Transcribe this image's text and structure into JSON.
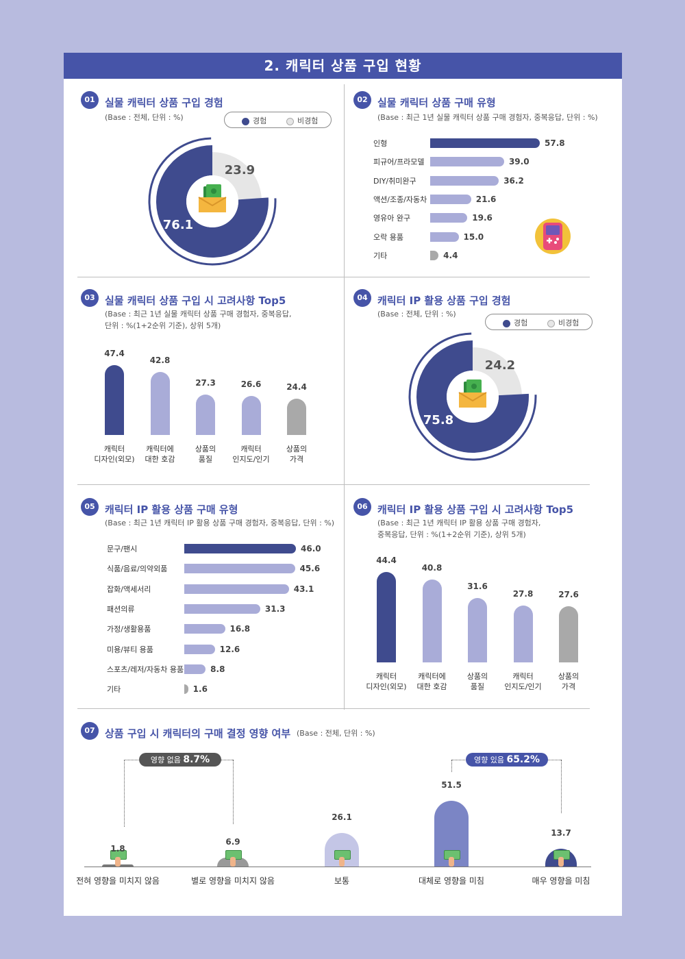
{
  "header": {
    "title": "2. 캐릭터 상품 구입 현황"
  },
  "colors": {
    "primary": "#4654a8",
    "dark_bar": "#3f4b8e",
    "light_bar": "#a9acd8",
    "gray_bar": "#a9a9a9",
    "donut_gray": "#e6e6e6"
  },
  "legend": {
    "experienced": "경험",
    "not_experienced": "비경험"
  },
  "sections": [
    {
      "num": "01",
      "title": "실물 캐릭터 상품 구입 경험",
      "base": "(Base : 전체, 단위 : %)"
    },
    {
      "num": "02",
      "title": "실물 캐릭터 상품 구매 유형",
      "base": "(Base : 최근 1년 실물 캐릭터 상품 구매 경험자, 중복응답, 단위 : %)"
    },
    {
      "num": "03",
      "title": "실물 캐릭터 상품 구입 시 고려사항 Top5",
      "base1": "(Base : 최근 1년 실물 캐릭터 상품 구매 경험자, 중복응답,",
      "base2": "단위 : %(1+2순위 기준), 상위 5개)"
    },
    {
      "num": "04",
      "title": "캐릭터 IP 활용 상품 구입 경험",
      "base": "(Base : 전체, 단위 : %)"
    },
    {
      "num": "05",
      "title": "캐릭터 IP 활용 상품 구매 유형",
      "base": "(Base : 최근 1년 캐릭터 IP 활용 상품 구매 경험자, 중복응답, 단위 : %)"
    },
    {
      "num": "06",
      "title": "캐릭터 IP 활용 상품 구입 시 고려사항 Top5",
      "base1": "(Base : 최근 1년 캐릭터 IP 활용 상품 구매 경험자,",
      "base2": "중복응답, 단위 : %(1+2순위 기준), 상위 5개)"
    },
    {
      "num": "07",
      "title": "상품 구입 시 캐릭터의 구매 결정 영향 여부",
      "base": "(Base : 전체, 단위 : %)"
    }
  ],
  "chart_data": [
    {
      "id": "01",
      "type": "pie",
      "labels": [
        "경험",
        "비경험"
      ],
      "values": [
        76.1,
        23.9
      ]
    },
    {
      "id": "02",
      "type": "bar",
      "orientation": "horizontal",
      "categories": [
        "인형",
        "피규어/프라모델",
        "DIY/취미완구",
        "액션/조종/자동차",
        "영유아 완구",
        "오락 용품",
        "기타"
      ],
      "values": [
        57.8,
        39.0,
        36.2,
        21.6,
        19.6,
        15.0,
        4.4
      ],
      "value_labels": [
        "57.8",
        "39.0",
        "36.2",
        "21.6",
        "19.6",
        "15.0",
        "4.4"
      ]
    },
    {
      "id": "03",
      "type": "bar",
      "categories": [
        [
          "캐릭터",
          "디자인(외모)"
        ],
        [
          "캐릭터에",
          "대한 호감"
        ],
        [
          "상품의",
          "품질"
        ],
        [
          "캐릭터",
          "인지도/인기"
        ],
        [
          "상품의",
          "가격"
        ]
      ],
      "values": [
        47.4,
        42.8,
        27.3,
        26.6,
        24.4
      ],
      "value_labels": [
        "47.4",
        "42.8",
        "27.3",
        "26.6",
        "24.4"
      ]
    },
    {
      "id": "04",
      "type": "pie",
      "labels": [
        "경험",
        "비경험"
      ],
      "values": [
        75.8,
        24.2
      ]
    },
    {
      "id": "05",
      "type": "bar",
      "orientation": "horizontal",
      "categories": [
        "문구/팬시",
        "식품/음료/의약외품",
        "잡화/액세서리",
        "패션의류",
        "가정/생활용품",
        "미용/뷰티 용품",
        "스포츠/레저/자동차 용품",
        "기타"
      ],
      "values": [
        46.0,
        45.6,
        43.1,
        31.3,
        16.8,
        12.6,
        8.8,
        1.6
      ],
      "value_labels": [
        "46.0",
        "45.6",
        "43.1",
        "31.3",
        "16.8",
        "12.6",
        "8.8",
        "1.6"
      ]
    },
    {
      "id": "06",
      "type": "bar",
      "categories": [
        [
          "캐릭터",
          "디자인(외모)"
        ],
        [
          "캐릭터에",
          "대한 호감"
        ],
        [
          "상품의",
          "품질"
        ],
        [
          "캐릭터",
          "인지도/인기"
        ],
        [
          "상품의",
          "가격"
        ]
      ],
      "values": [
        44.4,
        40.8,
        31.6,
        27.8,
        27.6
      ],
      "value_labels": [
        "44.4",
        "40.8",
        "31.6",
        "27.8",
        "27.6"
      ]
    },
    {
      "id": "07",
      "type": "bar",
      "categories": [
        "전혀 영향을 미치지 않음",
        "별로 영향을 미치지 않음",
        "보통",
        "대체로 영향을 미침",
        "매우 영향을 미침"
      ],
      "values": [
        1.8,
        6.9,
        26.1,
        51.5,
        13.7
      ],
      "value_labels": [
        "1.8",
        "6.9",
        "26.1",
        "51.5",
        "13.7"
      ],
      "annotations": [
        {
          "label": "영향 없음",
          "value": "8.7%"
        },
        {
          "label": "영향 있음",
          "value": "65.2%"
        }
      ]
    }
  ]
}
